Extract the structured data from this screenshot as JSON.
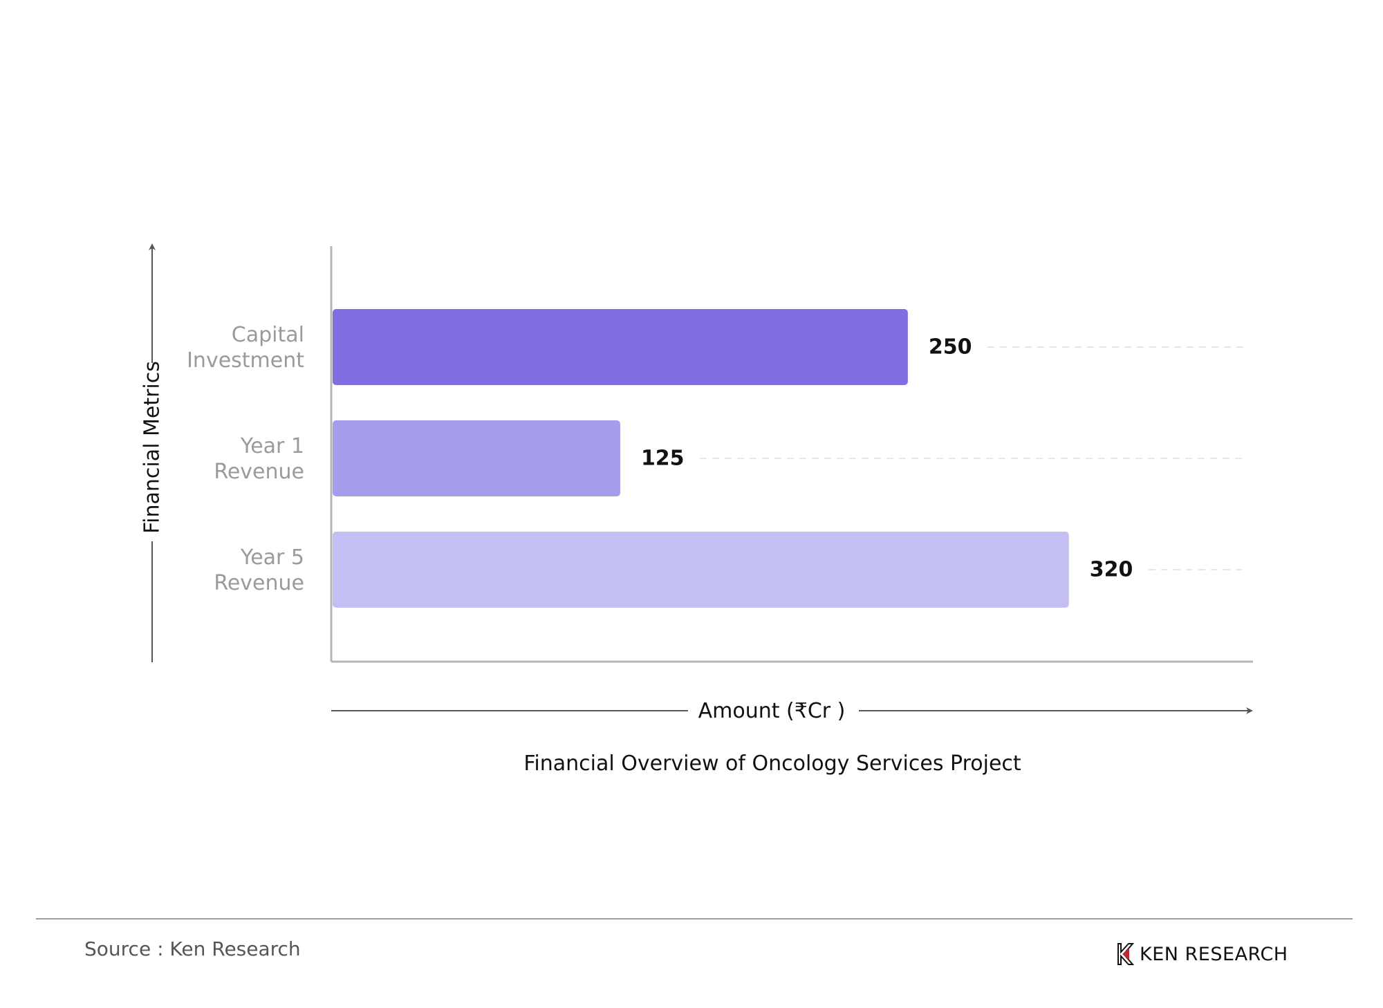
{
  "chart_data": {
    "type": "bar",
    "orientation": "horizontal",
    "title": "Financial Overview of Oncology Services Project",
    "xlabel": "Amount (₹Cr )",
    "ylabel": "Financial Metrics",
    "categories": [
      [
        "Capital",
        "Investment"
      ],
      [
        "Year 1",
        "Revenue"
      ],
      [
        "Year 5",
        "Revenue"
      ]
    ],
    "values": [
      250,
      125,
      320
    ],
    "value_labels": [
      "250",
      "125",
      "320"
    ],
    "xlim": [
      0,
      400
    ],
    "colors": [
      "#806fe2",
      "#a59dec",
      "#c4bff2"
    ],
    "grid": "dashed guide lines per bar"
  },
  "footer": {
    "source": "Source : Ken Research",
    "logo_text": "KEN RESEARCH"
  },
  "colors": {
    "axis": "#b5b5b5",
    "arrow": "#555555",
    "logo_accent": "#c0272d"
  }
}
